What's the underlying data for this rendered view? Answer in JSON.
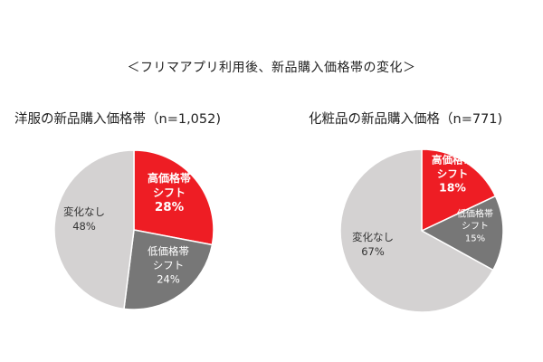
{
  "page_title": "＜フリマアプリ利用後、新品購入価格帯の変化＞",
  "chart_data": [
    {
      "type": "pie",
      "title": "洋服の新品購入価格帯（n=1,052)",
      "slices": [
        {
          "label": [
            "高価格帯",
            "シフト"
          ],
          "value_text": "28%",
          "value": 28,
          "color": "#ee1d24",
          "text_color": "#ffffff",
          "bold": true
        },
        {
          "label": [
            "低価格帯",
            "シフト"
          ],
          "value_text": "24%",
          "value": 24,
          "color": "#777777",
          "text_color": "#ffffff",
          "bold": false
        },
        {
          "label": [
            "変化なし"
          ],
          "value_text": "48%",
          "value": 48,
          "color": "#d4d2d2",
          "text_color": "#333333",
          "bold": false
        }
      ]
    },
    {
      "type": "pie",
      "title": "化粧品の新品購入価格（n=771)",
      "slices": [
        {
          "label": [
            "高価格帯",
            "シフト"
          ],
          "value_text": "18%",
          "value": 18,
          "color": "#ee1d24",
          "text_color": "#ffffff",
          "bold": true
        },
        {
          "label": [
            "低価格帯",
            "シフト"
          ],
          "value_text": "15%",
          "value": 15,
          "color": "#777777",
          "text_color": "#ffffff",
          "bold": false
        },
        {
          "label": [
            "変化なし"
          ],
          "value_text": "67%",
          "value": 67,
          "color": "#d4d2d2",
          "text_color": "#333333",
          "bold": false
        }
      ]
    }
  ]
}
